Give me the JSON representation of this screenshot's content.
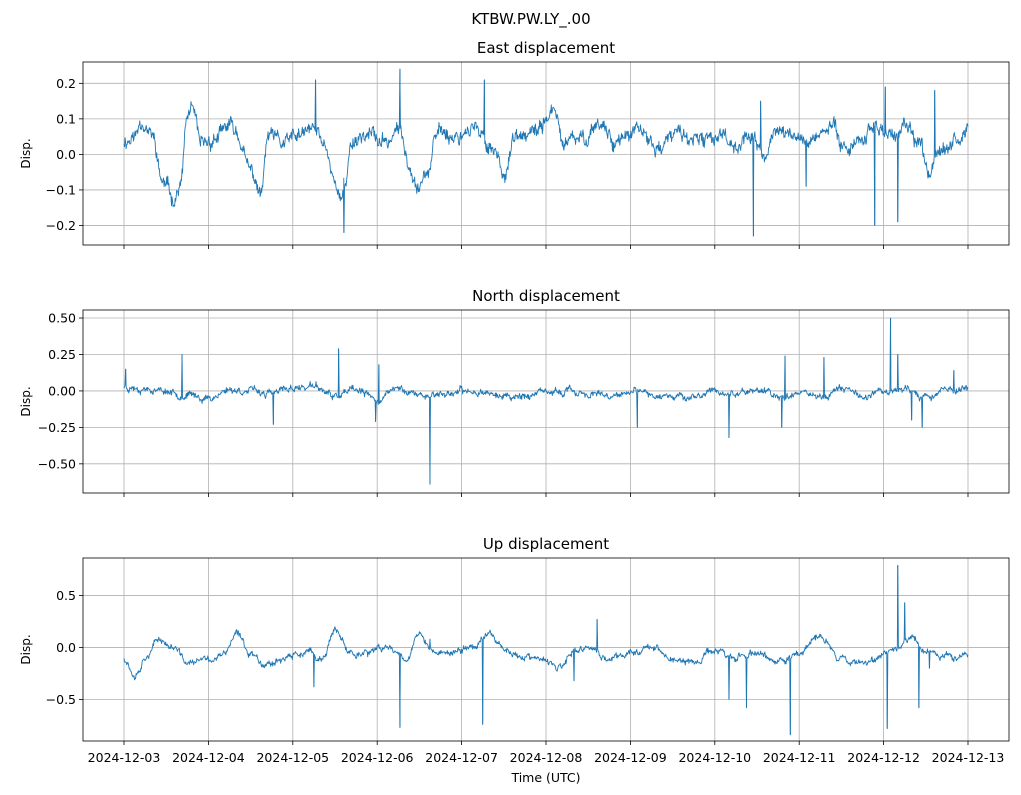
{
  "figure": {
    "suptitle": "KTBW.PW.LY_.00",
    "xlabel": "Time (UTC)",
    "line_color": "#1f77b4",
    "grid_color": "#b0b0b0"
  },
  "chart_data": [
    {
      "type": "line",
      "title": "East displacement",
      "ylabel": "Disp.",
      "ylim": [
        -0.255,
        0.26
      ],
      "yticks": [
        -0.2,
        -0.1,
        0.0,
        0.1,
        0.2
      ],
      "ytick_labels": [
        "−0.2",
        "−0.1",
        "0.0",
        "0.1",
        "0.2"
      ],
      "grid": true,
      "x_range": [
        "2024-12-03",
        "2024-12-13"
      ],
      "anchors": [
        [
          "2024-12-03T00:00",
          0.04
        ],
        [
          "2024-12-03T03:00",
          0.05
        ],
        [
          "2024-12-03T05:00",
          0.1
        ],
        [
          "2024-12-03T08:00",
          0.05
        ],
        [
          "2024-12-03T11:00",
          -0.08
        ],
        [
          "2024-12-03T14:00",
          -0.12
        ],
        [
          "2024-12-03T16:00",
          -0.09
        ],
        [
          "2024-12-03T18:00",
          0.1
        ],
        [
          "2024-12-03T19:00",
          0.13
        ],
        [
          "2024-12-03T22:00",
          0.02
        ],
        [
          "2024-12-04T03:00",
          0.05
        ],
        [
          "2024-12-04T06:00",
          0.08
        ],
        [
          "2024-12-04T08:00",
          0.06
        ],
        [
          "2024-12-04T12:00",
          -0.05
        ],
        [
          "2024-12-04T15:00",
          -0.11
        ],
        [
          "2024-12-04T17:00",
          0.05
        ],
        [
          "2024-12-04T21:00",
          0.03
        ],
        [
          "2024-12-05T02:00",
          0.05
        ],
        [
          "2024-12-05T06:00",
          0.07
        ],
        [
          "2024-12-05T09:00",
          0.03
        ],
        [
          "2024-12-05T12:00",
          -0.07
        ],
        [
          "2024-12-05T14:00",
          -0.13
        ],
        [
          "2024-12-05T17:00",
          0.04
        ],
        [
          "2024-12-05T21:00",
          0.06
        ],
        [
          "2024-12-06T02:00",
          0.03
        ],
        [
          "2024-12-06T06:00",
          0.07
        ],
        [
          "2024-12-06T09:00",
          -0.02
        ],
        [
          "2024-12-06T12:00",
          -0.08
        ],
        [
          "2024-12-06T14:00",
          -0.05
        ],
        [
          "2024-12-06T18:00",
          0.07
        ],
        [
          "2024-12-06T22:00",
          0.05
        ],
        [
          "2024-12-07T03:00",
          0.08
        ],
        [
          "2024-12-07T06:00",
          0.04
        ],
        [
          "2024-12-07T09:00",
          0.02
        ],
        [
          "2024-12-07T12:00",
          -0.05
        ],
        [
          "2024-12-07T15:00",
          0.04
        ],
        [
          "2024-12-07T20:00",
          0.05
        ],
        [
          "2024-12-08T02:00",
          0.12
        ],
        [
          "2024-12-08T05:00",
          0.03
        ],
        [
          "2024-12-08T10:00",
          0.04
        ],
        [
          "2024-12-08T15:00",
          0.09
        ],
        [
          "2024-12-08T20:00",
          0.04
        ],
        [
          "2024-12-09T02:00",
          0.06
        ],
        [
          "2024-12-09T08:00",
          0.02
        ],
        [
          "2024-12-09T14:00",
          0.06
        ],
        [
          "2024-12-09T20:00",
          0.03
        ],
        [
          "2024-12-10T02:00",
          0.06
        ],
        [
          "2024-12-10T06:00",
          0.03
        ],
        [
          "2024-12-10T10:00",
          0.05
        ],
        [
          "2024-12-10T14:00",
          0.0
        ],
        [
          "2024-12-10T18:00",
          0.07
        ],
        [
          "2024-12-10T22:00",
          0.05
        ],
        [
          "2024-12-11T02:00",
          0.04
        ],
        [
          "2024-12-11T06:00",
          0.06
        ],
        [
          "2024-12-11T10:00",
          0.07
        ],
        [
          "2024-12-11T14:00",
          0.02
        ],
        [
          "2024-12-11T18:00",
          0.05
        ],
        [
          "2024-12-11T22:00",
          0.08
        ],
        [
          "2024-12-12T03:00",
          0.05
        ],
        [
          "2024-12-12T07:00",
          0.07
        ],
        [
          "2024-12-12T10:00",
          0.02
        ],
        [
          "2024-12-12T13:00",
          -0.04
        ],
        [
          "2024-12-12T16:00",
          0.03
        ],
        [
          "2024-12-12T20:00",
          0.05
        ],
        [
          "2024-12-13T00:00",
          0.06
        ]
      ],
      "spikes": [
        [
          "2024-12-05T06:30",
          0.21
        ],
        [
          "2024-12-05T14:30",
          -0.22
        ],
        [
          "2024-12-06T06:30",
          0.24
        ],
        [
          "2024-12-07T06:30",
          0.21
        ],
        [
          "2024-12-10T11:00",
          -0.23
        ],
        [
          "2024-12-11T02:00",
          -0.09
        ],
        [
          "2024-12-11T21:30",
          -0.2
        ],
        [
          "2024-12-12T00:30",
          0.19
        ],
        [
          "2024-12-12T04:00",
          -0.19
        ],
        [
          "2024-12-12T14:30",
          0.18
        ],
        [
          "2024-12-10T13:00",
          0.15
        ]
      ],
      "noise": 0.018,
      "seed": 11
    },
    {
      "type": "line",
      "title": "North displacement",
      "ylabel": "Disp.",
      "ylim": [
        -0.7,
        0.555
      ],
      "yticks": [
        -0.5,
        -0.25,
        0.0,
        0.25,
        0.5
      ],
      "ytick_labels": [
        "−0.50",
        "−0.25",
        "0.00",
        "0.25",
        "0.50"
      ],
      "grid": true,
      "x_range": [
        "2024-12-03",
        "2024-12-13"
      ],
      "anchors": [
        [
          "2024-12-03T00:00",
          0.03
        ],
        [
          "2024-12-03T06:00",
          0.02
        ],
        [
          "2024-12-03T12:00",
          0.0
        ],
        [
          "2024-12-03T18:00",
          -0.03
        ],
        [
          "2024-12-04T00:00",
          -0.05
        ],
        [
          "2024-12-04T06:00",
          0.01
        ],
        [
          "2024-12-04T12:00",
          0.0
        ],
        [
          "2024-12-04T18:00",
          -0.02
        ],
        [
          "2024-12-05T00:00",
          0.02
        ],
        [
          "2024-12-05T06:00",
          0.03
        ],
        [
          "2024-12-05T12:00",
          -0.04
        ],
        [
          "2024-12-05T18:00",
          0.0
        ],
        [
          "2024-12-06T00:00",
          -0.06
        ],
        [
          "2024-12-06T06:00",
          0.02
        ],
        [
          "2024-12-06T12:00",
          -0.03
        ],
        [
          "2024-12-06T18:00",
          -0.02
        ],
        [
          "2024-12-07T00:00",
          -0.01
        ],
        [
          "2024-12-07T06:00",
          0.0
        ],
        [
          "2024-12-07T12:00",
          -0.04
        ],
        [
          "2024-12-07T18:00",
          -0.03
        ],
        [
          "2024-12-08T00:00",
          -0.02
        ],
        [
          "2024-12-08T06:00",
          0.0
        ],
        [
          "2024-12-08T12:00",
          -0.02
        ],
        [
          "2024-12-08T18:00",
          -0.05
        ],
        [
          "2024-12-09T00:00",
          -0.01
        ],
        [
          "2024-12-09T06:00",
          -0.03
        ],
        [
          "2024-12-09T12:00",
          -0.02
        ],
        [
          "2024-12-09T18:00",
          -0.05
        ],
        [
          "2024-12-10T00:00",
          0.0
        ],
        [
          "2024-12-10T06:00",
          -0.02
        ],
        [
          "2024-12-10T12:00",
          0.01
        ],
        [
          "2024-12-10T18:00",
          -0.04
        ],
        [
          "2024-12-11T00:00",
          0.0
        ],
        [
          "2024-12-11T06:00",
          -0.04
        ],
        [
          "2024-12-11T12:00",
          0.02
        ],
        [
          "2024-12-11T18:00",
          -0.03
        ],
        [
          "2024-12-12T00:00",
          0.0
        ],
        [
          "2024-12-12T06:00",
          0.02
        ],
        [
          "2024-12-12T12:00",
          -0.04
        ],
        [
          "2024-12-12T18:00",
          0.01
        ],
        [
          "2024-12-13T00:00",
          0.02
        ]
      ],
      "spikes": [
        [
          "2024-12-03T00:30",
          0.15
        ],
        [
          "2024-12-03T16:30",
          0.25
        ],
        [
          "2024-12-04T18:30",
          -0.23
        ],
        [
          "2024-12-05T13:00",
          0.29
        ],
        [
          "2024-12-05T23:30",
          -0.21
        ],
        [
          "2024-12-06T00:30",
          0.18
        ],
        [
          "2024-12-06T15:00",
          -0.64
        ],
        [
          "2024-12-09T02:00",
          -0.25
        ],
        [
          "2024-12-10T04:00",
          -0.32
        ],
        [
          "2024-12-10T19:00",
          -0.25
        ],
        [
          "2024-12-10T20:00",
          0.24
        ],
        [
          "2024-12-11T07:00",
          0.23
        ],
        [
          "2024-12-12T02:00",
          0.5
        ],
        [
          "2024-12-12T04:00",
          0.25
        ],
        [
          "2024-12-12T11:00",
          -0.25
        ],
        [
          "2024-12-12T08:00",
          -0.2
        ],
        [
          "2024-12-12T20:00",
          0.14
        ]
      ],
      "noise": 0.02,
      "seed": 23
    },
    {
      "type": "line",
      "title": "Up displacement",
      "ylabel": "Disp.",
      "ylim": [
        -0.9,
        0.86
      ],
      "yticks": [
        -0.5,
        0.0,
        0.5
      ],
      "ytick_labels": [
        "−0.5",
        "0.0",
        "0.5"
      ],
      "grid": true,
      "x_range": [
        "2024-12-03",
        "2024-12-13"
      ],
      "xticks": [
        "2024-12-03",
        "2024-12-04",
        "2024-12-05",
        "2024-12-06",
        "2024-12-07",
        "2024-12-08",
        "2024-12-09",
        "2024-12-10",
        "2024-12-11",
        "2024-12-12",
        "2024-12-13"
      ],
      "anchors": [
        [
          "2024-12-03T00:00",
          -0.1
        ],
        [
          "2024-12-03T03:00",
          -0.25
        ],
        [
          "2024-12-03T07:00",
          -0.05
        ],
        [
          "2024-12-03T10:00",
          0.08
        ],
        [
          "2024-12-03T14:00",
          0.0
        ],
        [
          "2024-12-03T18:00",
          -0.15
        ],
        [
          "2024-12-04T00:00",
          -0.12
        ],
        [
          "2024-12-04T04:00",
          -0.08
        ],
        [
          "2024-12-04T08:00",
          0.12
        ],
        [
          "2024-12-04T12:00",
          -0.05
        ],
        [
          "2024-12-04T16:00",
          -0.15
        ],
        [
          "2024-12-04T22:00",
          -0.1
        ],
        [
          "2024-12-05T04:00",
          -0.05
        ],
        [
          "2024-12-05T08:00",
          -0.12
        ],
        [
          "2024-12-05T12:00",
          0.15
        ],
        [
          "2024-12-05T16:00",
          -0.05
        ],
        [
          "2024-12-05T22:00",
          -0.05
        ],
        [
          "2024-12-06T04:00",
          0.0
        ],
        [
          "2024-12-06T08:00",
          -0.1
        ],
        [
          "2024-12-06T12:00",
          0.12
        ],
        [
          "2024-12-06T16:00",
          -0.05
        ],
        [
          "2024-12-06T22:00",
          -0.05
        ],
        [
          "2024-12-07T04:00",
          0.02
        ],
        [
          "2024-12-07T08:00",
          0.15
        ],
        [
          "2024-12-07T12:00",
          0.0
        ],
        [
          "2024-12-07T16:00",
          -0.08
        ],
        [
          "2024-12-07T22:00",
          -0.12
        ],
        [
          "2024-12-08T04:00",
          -0.2
        ],
        [
          "2024-12-08T08:00",
          -0.05
        ],
        [
          "2024-12-08T12:00",
          0.0
        ],
        [
          "2024-12-08T18:00",
          -0.12
        ],
        [
          "2024-12-09T00:00",
          -0.05
        ],
        [
          "2024-12-09T06:00",
          0.02
        ],
        [
          "2024-12-09T12:00",
          -0.12
        ],
        [
          "2024-12-09T18:00",
          -0.15
        ],
        [
          "2024-12-10T00:00",
          -0.02
        ],
        [
          "2024-12-10T06:00",
          -0.1
        ],
        [
          "2024-12-10T12:00",
          -0.05
        ],
        [
          "2024-12-10T18:00",
          -0.15
        ],
        [
          "2024-12-11T00:00",
          -0.05
        ],
        [
          "2024-12-11T06:00",
          0.1
        ],
        [
          "2024-12-11T12:00",
          -0.1
        ],
        [
          "2024-12-11T18:00",
          -0.15
        ],
        [
          "2024-12-12T00:00",
          -0.05
        ],
        [
          "2024-12-12T04:00",
          0.0
        ],
        [
          "2024-12-12T08:00",
          0.12
        ],
        [
          "2024-12-12T12:00",
          -0.05
        ],
        [
          "2024-12-12T18:00",
          -0.1
        ],
        [
          "2024-12-13T00:00",
          -0.05
        ]
      ],
      "spikes": [
        [
          "2024-12-05T06:00",
          -0.38
        ],
        [
          "2024-12-06T06:30",
          -0.77
        ],
        [
          "2024-12-06T15:00",
          0.08
        ],
        [
          "2024-12-07T06:00",
          -0.74
        ],
        [
          "2024-12-08T14:30",
          0.27
        ],
        [
          "2024-12-08T08:00",
          -0.32
        ],
        [
          "2024-12-10T04:00",
          -0.5
        ],
        [
          "2024-12-10T09:00",
          -0.58
        ],
        [
          "2024-12-10T21:30",
          -0.84
        ],
        [
          "2024-12-12T01:00",
          -0.78
        ],
        [
          "2024-12-12T04:00",
          0.79
        ],
        [
          "2024-12-12T06:00",
          0.43
        ],
        [
          "2024-12-12T10:00",
          -0.58
        ],
        [
          "2024-12-12T13:00",
          -0.2
        ]
      ],
      "noise": 0.028,
      "seed": 37
    }
  ]
}
